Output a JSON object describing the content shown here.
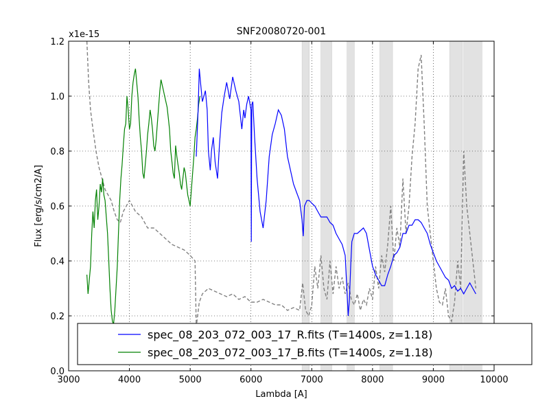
{
  "chart_data": {
    "type": "line",
    "title": "SNF20080720-001",
    "xlabel": "Lambda [A]",
    "ylabel": "Flux [erg/s/cm2/A]",
    "y_offset_label": "x1e-15",
    "xlim": [
      3000,
      10000
    ],
    "ylim": [
      0.0,
      1.2
    ],
    "x_ticks": [
      3000,
      4000,
      5000,
      6000,
      7000,
      8000,
      9000,
      10000
    ],
    "x_tick_labels": [
      "3000",
      "4000",
      "5000",
      "6000",
      "7000",
      "8000",
      "9000",
      "10000"
    ],
    "y_ticks": [
      0.0,
      0.2,
      0.4,
      0.6,
      0.8,
      1.0,
      1.2
    ],
    "y_tick_labels": [
      "0.0",
      "0.2",
      "0.4",
      "0.6",
      "0.8",
      "1.0",
      "1.2"
    ],
    "grid": true,
    "legend_position": "bottom",
    "telluric_bands": [
      [
        6840,
        6960
      ],
      [
        7150,
        7330
      ],
      [
        7580,
        7700
      ],
      [
        8120,
        8330
      ],
      [
        9270,
        9480
      ],
      [
        9500,
        9800
      ]
    ],
    "series": [
      {
        "name": "spec_08_203_072_003_17_R.fits (T=1400s, z=1.18)",
        "color": "#0000ff",
        "style": "solid",
        "x": [
          5100,
          5130,
          5150,
          5170,
          5200,
          5250,
          5280,
          5300,
          5330,
          5350,
          5380,
          5410,
          5450,
          5480,
          5520,
          5560,
          5600,
          5650,
          5700,
          5750,
          5800,
          5850,
          5880,
          5900,
          5930,
          5960,
          6000,
          6005,
          6010,
          6015,
          6030,
          6060,
          6100,
          6150,
          6200,
          6250,
          6300,
          6350,
          6400,
          6450,
          6500,
          6550,
          6600,
          6650,
          6700,
          6750,
          6800,
          6840,
          6860,
          6880,
          6920,
          6960,
          7000,
          7050,
          7100,
          7150,
          7200,
          7250,
          7300,
          7350,
          7400,
          7450,
          7500,
          7550,
          7600,
          7620,
          7640,
          7660,
          7700,
          7750,
          7800,
          7850,
          7900,
          7950,
          8000,
          8050,
          8100,
          8150,
          8200,
          8250,
          8300,
          8350,
          8400,
          8450,
          8500,
          8550,
          8600,
          8650,
          8700,
          8750,
          8800,
          8850,
          8900,
          8950,
          9000,
          9050,
          9100,
          9150,
          9200,
          9250,
          9300,
          9350,
          9400,
          9450,
          9500,
          9550,
          9600,
          9650,
          9700
        ],
        "y": [
          0.78,
          0.95,
          1.1,
          1.05,
          0.98,
          1.02,
          0.95,
          0.8,
          0.73,
          0.8,
          0.85,
          0.76,
          0.7,
          0.82,
          0.94,
          1.0,
          1.05,
          0.99,
          1.07,
          1.02,
          0.98,
          0.88,
          0.95,
          0.92,
          0.97,
          1.0,
          0.95,
          0.47,
          0.8,
          0.97,
          0.98,
          0.85,
          0.7,
          0.58,
          0.52,
          0.62,
          0.78,
          0.86,
          0.9,
          0.95,
          0.93,
          0.88,
          0.78,
          0.73,
          0.68,
          0.65,
          0.62,
          0.55,
          0.49,
          0.6,
          0.62,
          0.62,
          0.61,
          0.6,
          0.58,
          0.56,
          0.56,
          0.56,
          0.54,
          0.53,
          0.5,
          0.48,
          0.46,
          0.42,
          0.2,
          0.26,
          0.38,
          0.47,
          0.5,
          0.5,
          0.51,
          0.52,
          0.5,
          0.44,
          0.38,
          0.35,
          0.33,
          0.31,
          0.31,
          0.35,
          0.38,
          0.42,
          0.43,
          0.45,
          0.5,
          0.5,
          0.53,
          0.53,
          0.55,
          0.55,
          0.54,
          0.52,
          0.5,
          0.46,
          0.43,
          0.4,
          0.38,
          0.36,
          0.34,
          0.33,
          0.3,
          0.31,
          0.29,
          0.3,
          0.28,
          0.3,
          0.32,
          0.3,
          0.28
        ]
      },
      {
        "name": "spec_08_203_072_003_17_B.fits (T=1400s, z=1.18)",
        "color": "#008000",
        "style": "solid",
        "x": [
          3300,
          3320,
          3340,
          3360,
          3380,
          3400,
          3420,
          3440,
          3460,
          3480,
          3500,
          3520,
          3540,
          3560,
          3580,
          3600,
          3620,
          3640,
          3660,
          3680,
          3700,
          3720,
          3740,
          3760,
          3780,
          3800,
          3820,
          3840,
          3860,
          3880,
          3900,
          3920,
          3940,
          3960,
          3980,
          4000,
          4020,
          4040,
          4060,
          4080,
          4100,
          4120,
          4140,
          4160,
          4180,
          4200,
          4220,
          4240,
          4260,
          4280,
          4300,
          4320,
          4340,
          4360,
          4380,
          4400,
          4420,
          4440,
          4460,
          4480,
          4500,
          4520,
          4540,
          4560,
          4580,
          4600,
          4620,
          4640,
          4660,
          4680,
          4700,
          4720,
          4740,
          4760,
          4780,
          4800,
          4820,
          4840,
          4860,
          4880,
          4900,
          4920,
          4940,
          4960,
          4980,
          5000,
          5020,
          5040,
          5060,
          5080,
          5100,
          5120,
          5140,
          5160
        ],
        "y": [
          0.35,
          0.28,
          0.33,
          0.38,
          0.5,
          0.58,
          0.52,
          0.62,
          0.66,
          0.55,
          0.6,
          0.68,
          0.65,
          0.7,
          0.64,
          0.62,
          0.56,
          0.5,
          0.4,
          0.3,
          0.22,
          0.18,
          0.17,
          0.22,
          0.3,
          0.38,
          0.5,
          0.62,
          0.7,
          0.75,
          0.82,
          0.88,
          0.9,
          1.0,
          0.95,
          0.88,
          0.9,
          1.0,
          1.05,
          1.08,
          1.1,
          1.05,
          1.0,
          0.92,
          0.85,
          0.8,
          0.72,
          0.7,
          0.75,
          0.8,
          0.86,
          0.9,
          0.95,
          0.92,
          0.88,
          0.82,
          0.8,
          0.84,
          0.9,
          0.96,
          1.02,
          1.06,
          1.04,
          1.02,
          1.0,
          0.98,
          0.96,
          0.92,
          0.88,
          0.8,
          0.76,
          0.72,
          0.7,
          0.82,
          0.78,
          0.75,
          0.72,
          0.68,
          0.66,
          0.7,
          0.74,
          0.72,
          0.68,
          0.64,
          0.62,
          0.6,
          0.66,
          0.72,
          0.78,
          0.85,
          0.88,
          0.92,
          0.97,
          1.0
        ]
      },
      {
        "color": "#808080",
        "style": "dashed",
        "x": [
          3300,
          3330,
          3360,
          3400,
          3450,
          3500,
          3550,
          3600,
          3650,
          3700,
          3750,
          3800,
          3850,
          3900,
          3950,
          4000,
          4100,
          4200,
          4300,
          4400,
          4500,
          4600,
          4700,
          4800,
          4900,
          5000,
          5080,
          5100,
          5150,
          5200,
          5300,
          5400,
          5500,
          5600,
          5700,
          5800,
          5900,
          6000,
          6100,
          6200,
          6300,
          6400,
          6500,
          6600,
          6700,
          6800,
          6850,
          6900,
          6950,
          7000,
          7050,
          7100,
          7150,
          7200,
          7250,
          7300,
          7350,
          7400,
          7450,
          7500,
          7550,
          7600,
          7650,
          7700,
          7750,
          7800,
          7850,
          7900,
          7950,
          8000,
          8050,
          8100,
          8150,
          8200,
          8250,
          8300,
          8350,
          8400,
          8450,
          8500,
          8550,
          8600,
          8650,
          8700,
          8750,
          8800,
          8850,
          8900,
          8950,
          9000,
          9050,
          9100,
          9150,
          9200,
          9250,
          9300,
          9350,
          9400,
          9450,
          9500,
          9550,
          9600,
          9650,
          9700
        ],
        "y": [
          1.2,
          1.05,
          0.95,
          0.88,
          0.8,
          0.74,
          0.7,
          0.66,
          0.64,
          0.62,
          0.58,
          0.55,
          0.54,
          0.58,
          0.6,
          0.62,
          0.58,
          0.56,
          0.52,
          0.52,
          0.5,
          0.48,
          0.46,
          0.45,
          0.44,
          0.42,
          0.4,
          0.16,
          0.25,
          0.28,
          0.3,
          0.29,
          0.28,
          0.27,
          0.28,
          0.26,
          0.27,
          0.25,
          0.25,
          0.26,
          0.25,
          0.24,
          0.24,
          0.22,
          0.23,
          0.22,
          0.32,
          0.22,
          0.2,
          0.24,
          0.38,
          0.3,
          0.42,
          0.3,
          0.26,
          0.4,
          0.28,
          0.38,
          0.3,
          0.34,
          0.28,
          0.32,
          0.26,
          0.24,
          0.28,
          0.22,
          0.26,
          0.24,
          0.3,
          0.26,
          0.38,
          0.3,
          0.42,
          0.36,
          0.46,
          0.6,
          0.4,
          0.52,
          0.45,
          0.7,
          0.5,
          0.6,
          0.78,
          0.9,
          1.1,
          1.15,
          0.9,
          0.6,
          0.5,
          0.4,
          0.3,
          0.25,
          0.24,
          0.3,
          0.2,
          0.18,
          0.25,
          0.4,
          0.3,
          0.8,
          0.6,
          0.5,
          0.4,
          0.3
        ]
      }
    ]
  }
}
